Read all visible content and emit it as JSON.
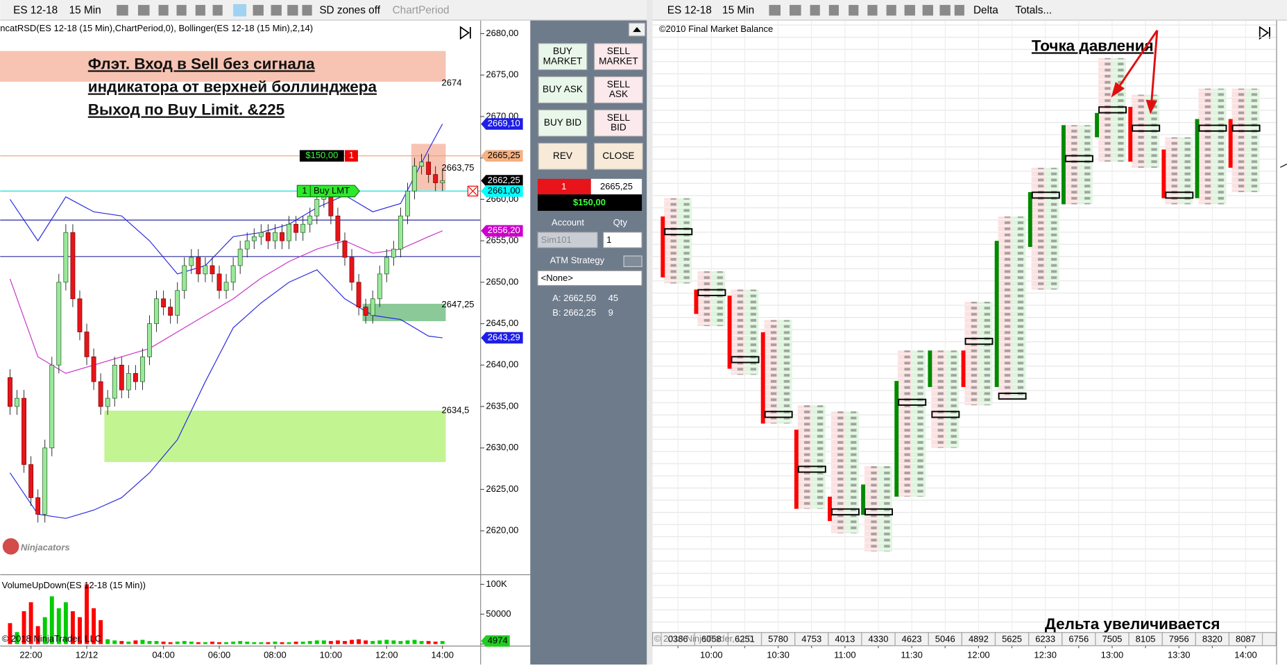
{
  "toolbar_left": {
    "symbol": "ES 12-18",
    "period": "15 Min",
    "zones_button": "SD zones off",
    "chart_period": "ChartPeriod"
  },
  "toolbar_right": {
    "symbol": "ES 12-18",
    "period": "15 Min",
    "mode": "Delta",
    "totals": "Totals..."
  },
  "chart_data": [
    {
      "type": "candlestick",
      "label": "ncatRSD(ES  12-18 (15 Min),ChartPeriod,0),  Bollinger(ES  12-18 (15 Min),2,14)",
      "annotation": [
        "Флэт. Вход в Sell без сигнала",
        "индикатора от верхней боллинджера",
        "Выход по Buy Limit. &225"
      ],
      "watermark": "Ninjacators",
      "up_color": "#9be89b",
      "down_color": "#e8141a",
      "ylim": [
        2615,
        2682
      ],
      "yticks": [
        {
          "value": 2680,
          "label": "2680,00"
        },
        {
          "value": 2675,
          "label": "2675,00"
        },
        {
          "value": 2670,
          "label": "2670,00"
        },
        {
          "value": 2665,
          "label": "2665,00"
        },
        {
          "value": 2660,
          "label": "2660,00"
        },
        {
          "value": 2655,
          "label": "2655,00"
        },
        {
          "value": 2650,
          "label": "2650,00"
        },
        {
          "value": 2645,
          "label": "2645,00"
        },
        {
          "value": 2640,
          "label": "2640,00"
        },
        {
          "value": 2635,
          "label": "2635,00"
        },
        {
          "value": 2630,
          "label": "2630,00"
        },
        {
          "value": 2625,
          "label": "2625,00"
        },
        {
          "value": 2620,
          "label": "2620,00"
        }
      ],
      "xticks": [
        {
          "value": 3,
          "label": "22:00"
        },
        {
          "value": 11,
          "label": "12/12"
        },
        {
          "value": 22,
          "label": "04:00"
        },
        {
          "value": 30,
          "label": "06:00"
        },
        {
          "value": 38,
          "label": "08:00"
        },
        {
          "value": 46,
          "label": "10:00"
        },
        {
          "value": 54,
          "label": "12:00"
        },
        {
          "value": 62,
          "label": "14:00"
        }
      ],
      "candles": [
        [
          2638.5,
          2639.5,
          2634,
          2635
        ],
        [
          2635,
          2637,
          2634,
          2636
        ],
        [
          2636,
          2637,
          2627,
          2628
        ],
        [
          2628,
          2629,
          2623,
          2624
        ],
        [
          2624,
          2625,
          2621,
          2622
        ],
        [
          2622,
          2631,
          2621,
          2630
        ],
        [
          2630,
          2641,
          2629,
          2640
        ],
        [
          2640,
          2651,
          2639,
          2650
        ],
        [
          2650,
          2657,
          2649,
          2656
        ],
        [
          2656,
          2657,
          2647,
          2648
        ],
        [
          2648,
          2649,
          2643,
          2644
        ],
        [
          2644,
          2645,
          2640,
          2641
        ],
        [
          2641,
          2642,
          2637,
          2638
        ],
        [
          2638,
          2639,
          2634,
          2635
        ],
        [
          2635,
          2637,
          2634,
          2636
        ],
        [
          2636,
          2641,
          2635,
          2640
        ],
        [
          2640,
          2641,
          2636,
          2637
        ],
        [
          2637,
          2640,
          2636,
          2639
        ],
        [
          2639,
          2640,
          2637,
          2638
        ],
        [
          2638,
          2642,
          2637,
          2641
        ],
        [
          2641,
          2646,
          2640,
          2645
        ],
        [
          2645,
          2649,
          2644,
          2648
        ],
        [
          2648,
          2649,
          2646,
          2647
        ],
        [
          2647,
          2648,
          2645,
          2646
        ],
        [
          2646,
          2650,
          2645,
          2649
        ],
        [
          2649,
          2653,
          2648,
          2652
        ],
        [
          2652,
          2654,
          2651,
          2653
        ],
        [
          2653,
          2654,
          2650,
          2651
        ],
        [
          2651,
          2653,
          2650,
          2652
        ],
        [
          2652,
          2653,
          2650,
          2651
        ],
        [
          2651,
          2652,
          2648,
          2649
        ],
        [
          2649,
          2651,
          2648,
          2650
        ],
        [
          2650,
          2653,
          2649,
          2652
        ],
        [
          2652,
          2655,
          2651,
          2654
        ],
        [
          2654,
          2656,
          2653,
          2655
        ],
        [
          2655,
          2656.5,
          2654,
          2655.5
        ],
        [
          2655.5,
          2657,
          2654.5,
          2656
        ],
        [
          2656,
          2657,
          2654,
          2655
        ],
        [
          2655,
          2657,
          2654,
          2656
        ],
        [
          2656,
          2657,
          2654,
          2655
        ],
        [
          2655,
          2658,
          2654,
          2657
        ],
        [
          2657,
          2658,
          2655,
          2656
        ],
        [
          2656,
          2658,
          2655,
          2657
        ],
        [
          2657,
          2659,
          2656,
          2658
        ],
        [
          2658,
          2661,
          2657,
          2660
        ],
        [
          2660,
          2661.5,
          2659,
          2660.5
        ],
        [
          2660.5,
          2661.5,
          2657,
          2658
        ],
        [
          2658,
          2659,
          2654,
          2655
        ],
        [
          2655,
          2656,
          2652,
          2653
        ],
        [
          2653,
          2654,
          2649,
          2650
        ],
        [
          2650,
          2651,
          2646,
          2647
        ],
        [
          2647,
          2648,
          2645,
          2646
        ],
        [
          2646,
          2649,
          2645,
          2648
        ],
        [
          2648,
          2652,
          2647,
          2651
        ],
        [
          2651,
          2654,
          2650,
          2653
        ],
        [
          2653,
          2655,
          2652,
          2654
        ],
        [
          2654,
          2659,
          2653,
          2658
        ],
        [
          2658,
          2662,
          2657,
          2661
        ],
        [
          2661,
          2665,
          2660,
          2664
        ],
        [
          2664,
          2665.5,
          2663,
          2664.5
        ],
        [
          2664.5,
          2665.5,
          2662,
          2663
        ],
        [
          2663,
          2664,
          2661,
          2662
        ],
        [
          2662,
          2663.75,
          2661,
          2662.25
        ]
      ],
      "bollinger": {
        "index": [
          0,
          4,
          8,
          12,
          16,
          20,
          24,
          28,
          32,
          36,
          40,
          44,
          48,
          52,
          56,
          60,
          62
        ],
        "upper": [
          2660,
          2655,
          2660.3,
          2658.5,
          2658,
          2655,
          2651,
          2652,
          2655.5,
          2656,
          2657,
          2659,
          2660.5,
          2658.5,
          2659.5,
          2666,
          2669.1
        ],
        "middle": [
          2650.4,
          2641,
          2639,
          2640,
          2641,
          2642,
          2644,
          2646,
          2648,
          2650.5,
          2652.5,
          2654,
          2655,
          2653.5,
          2654,
          2655.5,
          2656.2
        ],
        "lower": [
          2627,
          2622,
          2621.5,
          2622.5,
          2624,
          2627,
          2631,
          2638,
          2644.5,
          2647.5,
          2650,
          2651.5,
          2648,
          2646,
          2645.5,
          2643.5,
          2643.29
        ],
        "band_color": "#2b2be0",
        "middle_color": "#c833c8"
      },
      "zones": [
        {
          "top": 2677.9,
          "bottom": 2674.2,
          "start": -1,
          "end": 62,
          "color": "#f6b9a4",
          "level": {
            "value": 2674,
            "label": "2674"
          }
        },
        {
          "top": 2666.7,
          "bottom": 2661.1,
          "start": 58,
          "end": 62,
          "color": "#f6b9a4",
          "level": {
            "value": 2663.75,
            "label": "2663,75"
          }
        },
        {
          "top": 2647.4,
          "bottom": 2645.3,
          "start": 51,
          "end": 62,
          "color": "#77c086",
          "level": {
            "value": 2647.25,
            "label": "2647,25"
          }
        },
        {
          "top": 2634.5,
          "bottom": 2628.3,
          "start": 14,
          "end": 62,
          "color": "#b7f27f",
          "level": {
            "value": 2634.5,
            "label": "2634,5"
          }
        }
      ],
      "hlines": [
        {
          "value": 2657.5,
          "color": "#2a2a9a"
        },
        {
          "value": 2653.1,
          "color": "#2a2a9a"
        },
        {
          "value": 2665.25,
          "color": "#f0a070"
        },
        {
          "value": 2661,
          "color": "#00dcdc"
        }
      ],
      "flags": [
        {
          "value": 2669.1,
          "label": "2669,10",
          "color": "#1e1ee6",
          "text_color": "#ffffff"
        },
        {
          "value": 2665.25,
          "label": "2665,25",
          "color": "#f4b183",
          "text_color": "#000000"
        },
        {
          "value": 2662.25,
          "label": "2662,25",
          "color": "#000000",
          "text_color": "#ffffff"
        },
        {
          "value": 2661,
          "label": "2661,00",
          "color": "#00ffff",
          "text_color": "#000000"
        },
        {
          "value": 2656.2,
          "label": "2656,20",
          "color": "#cc00cc",
          "text_color": "#ffffff"
        },
        {
          "value": 2643.29,
          "label": "2643,29",
          "color": "#1e1ee6",
          "text_color": "#ffffff"
        }
      ],
      "position_order": {
        "value": 2665.25,
        "pnl": "$150,00",
        "qty": 1
      },
      "limit_order": {
        "value": 2661,
        "qty": 1,
        "kind": "Buy LMT"
      }
    },
    {
      "type": "bar",
      "label": "VolumeUpDown(ES 12-18 (15 Min))",
      "copyright": "© 2018 NinjaTrader, LLC",
      "up_color": "#00cc00",
      "down_color": "#ff0000",
      "ylim": [
        0,
        110000
      ],
      "yticks": [
        {
          "value": 100000,
          "label": "100K"
        },
        50000,
        0
      ],
      "values": [
        35000,
        20000,
        55000,
        70000,
        30000,
        45000,
        80000,
        60000,
        70000,
        55000,
        45000,
        100000,
        60000,
        40000,
        8000,
        6000,
        5000,
        4000,
        6000,
        7000,
        5000,
        5000,
        4000,
        3000,
        4000,
        5000,
        4000,
        3000,
        3000,
        4000,
        3000,
        3000,
        4000,
        5000,
        4000,
        3000,
        3000,
        3000,
        4000,
        3000,
        3000,
        4000,
        4000,
        5000,
        6000,
        6000,
        5000,
        6000,
        5000,
        7000,
        8000,
        6000,
        5000,
        6000,
        7000,
        6000,
        5000,
        6000,
        7000,
        5000,
        5000,
        4000,
        4974
      ],
      "last_flag": 4974
    },
    {
      "type": "footprint",
      "label": "©2010 Final Market Balance",
      "copyright": "© 2018 NinjaTrader, LLC",
      "annotations": [
        "Точка давления",
        "Дельта увеличивается"
      ],
      "up_color": "#008a00",
      "down_color": "#ff0000",
      "ylim": [
        2642.5,
        2667.25
      ],
      "categories": [
        null,
        "10:00",
        null,
        "10:30",
        null,
        "11:00",
        null,
        "11:30",
        null,
        "12:00",
        null,
        "12:30",
        null,
        "13:00",
        null,
        "13:30",
        null,
        "14:00"
      ],
      "columns": [
        {
          "open": 2659.25,
          "high": 2660,
          "low": 2656.75,
          "close": 2657,
          "poc": 2658.75
        },
        {
          "open": 2656.25,
          "high": 2657,
          "low": 2655,
          "close": 2655.5,
          "poc": 2656.25
        },
        {
          "open": 2656,
          "high": 2656.25,
          "low": 2653,
          "close": 2653.25,
          "poc": 2653.5
        },
        {
          "open": 2654.5,
          "high": 2655,
          "low": 2651,
          "close": 2651,
          "poc": 2651.25
        },
        {
          "open": 2650.5,
          "high": 2651.5,
          "low": 2647.5,
          "close": 2647.5,
          "poc": 2649
        },
        {
          "open": 2647.75,
          "high": 2651.25,
          "low": 2646.5,
          "close": 2647,
          "poc": 2647.25
        },
        {
          "open": 2647.25,
          "high": 2649,
          "low": 2645.75,
          "close": 2648.25,
          "poc": 2647.25
        },
        {
          "open": 2648,
          "high": 2653.75,
          "low": 2648,
          "close": 2652.5,
          "poc": 2651.75
        },
        {
          "open": 2652.5,
          "high": 2653.75,
          "low": 2650,
          "close": 2653.75,
          "poc": 2651.25
        },
        {
          "open": 2653.75,
          "high": 2655.75,
          "low": 2651.75,
          "close": 2652.5,
          "poc": 2654.25
        },
        {
          "open": 2652.5,
          "high": 2659.25,
          "low": 2652,
          "close": 2658.25,
          "poc": 2652
        },
        {
          "open": 2658.25,
          "high": 2661.25,
          "low": 2656.5,
          "close": 2660.25,
          "poc": 2660.25
        },
        {
          "open": 2660,
          "high": 2663,
          "low": 2660,
          "close": 2663,
          "poc": 2661.75
        },
        {
          "open": 2662.75,
          "high": 2665.75,
          "low": 2661.75,
          "close": 2663.5,
          "poc": 2663.75
        },
        {
          "open": 2663.75,
          "high": 2664.25,
          "low": 2661.5,
          "close": 2661.75,
          "poc": 2663
        },
        {
          "open": 2662,
          "high": 2662.5,
          "low": 2660,
          "close": 2660.25,
          "poc": 2660.25
        },
        {
          "open": 2660.25,
          "high": 2664.5,
          "low": 2660,
          "close": 2663.25,
          "poc": 2663
        },
        {
          "open": 2663.25,
          "high": 2664.5,
          "low": 2660.5,
          "close": 2661.5,
          "poc": 2663
        }
      ],
      "totals": [
        {
          "value": 386,
          "label": "0386"
        },
        6058,
        6251,
        5780,
        4753,
        4013,
        4330,
        4623,
        5046,
        4892,
        5625,
        6233,
        6756,
        7505,
        8105,
        7956,
        8320,
        8087
      ]
    }
  ],
  "order_panel": {
    "buttons": [
      [
        "BUY",
        "MARKET"
      ],
      [
        "SELL",
        "MARKET"
      ],
      [
        "BUY ASK"
      ],
      [
        "SELL",
        "ASK"
      ],
      [
        "BUY BID"
      ],
      [
        "SELL",
        "BID"
      ],
      [
        "REV"
      ],
      [
        "CLOSE"
      ]
    ],
    "position": {
      "qty": 1,
      "avg_price": "2665,25",
      "pnl": "$150,00"
    },
    "account_label": "Account",
    "qty_label": "Qty",
    "account": "Sim101",
    "qty": 1,
    "atm_label": "ATM Strategy",
    "atm": "<None>",
    "ask": {
      "label": "A: 2662,50",
      "size": 45
    },
    "bid": {
      "label": "B: 2662,25",
      "size": 9
    }
  }
}
